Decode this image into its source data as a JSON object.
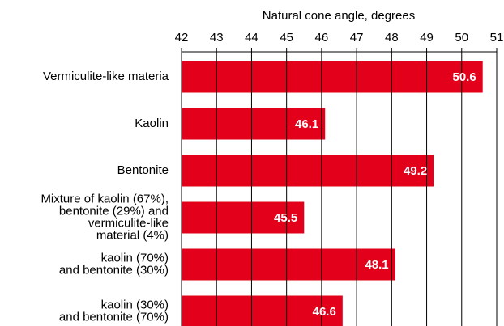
{
  "chart_data": {
    "type": "bar",
    "orientation": "horizontal",
    "xlabel": "Natural cone angle, degrees",
    "categories": [
      "Vermiculite-like materia",
      "Kaolin",
      "Bentonite",
      "Mixture of kaolin (67%),\nbentonite (29%) and\nvermiculite-like\nmaterial (4%)",
      "kaolin (70%)\nand bentonite (30%)",
      "kaolin (30%)\nand bentonite (70%)"
    ],
    "values": [
      50.6,
      46.1,
      49.2,
      45.5,
      48.1,
      46.6
    ],
    "color": "#e3001b",
    "xlim": [
      42,
      51
    ],
    "xticks": [
      42,
      43,
      44,
      45,
      46,
      47,
      48,
      49,
      50,
      51
    ],
    "grid": true
  }
}
